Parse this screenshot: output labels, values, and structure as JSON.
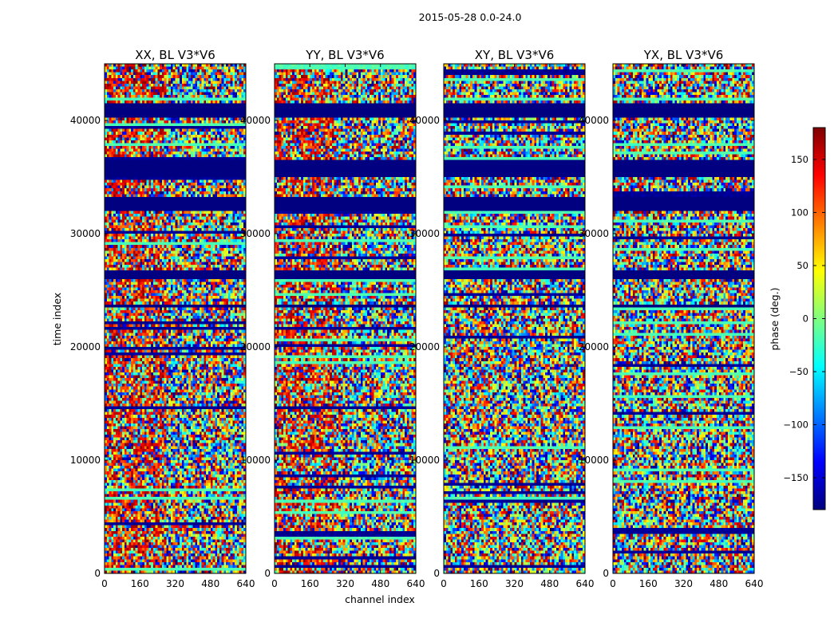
{
  "chart_data": {
    "type": "heatmap",
    "suptitle": "2015-05-28 0.0-24.0",
    "xlabel": "channel index",
    "ylabel": "time index",
    "xlim": [
      0,
      640
    ],
    "ylim": [
      0,
      45000
    ],
    "xticks": [
      0,
      160,
      320,
      480,
      640
    ],
    "yticks": [
      0,
      10000,
      20000,
      30000,
      40000
    ],
    "panels": [
      {
        "title": "XX, BL V3*V6"
      },
      {
        "title": "YY, BL V3*V6"
      },
      {
        "title": "XY, BL V3*V6"
      },
      {
        "title": "YX, BL V3*V6"
      }
    ],
    "colorbar": {
      "label": "phase (deg.)",
      "range": [
        -180,
        180
      ],
      "ticks": [
        150,
        100,
        50,
        0,
        -50,
        -100,
        -150
      ],
      "tick_labels": [
        "150",
        "100",
        "50",
        "0",
        "−50",
        "−100",
        "−150"
      ],
      "colormap": [
        "#00007f",
        "#0000ff",
        "#007fff",
        "#00ffff",
        "#7fff7f",
        "#ffff00",
        "#ff7f00",
        "#ff0000",
        "#7f0000"
      ]
    }
  }
}
